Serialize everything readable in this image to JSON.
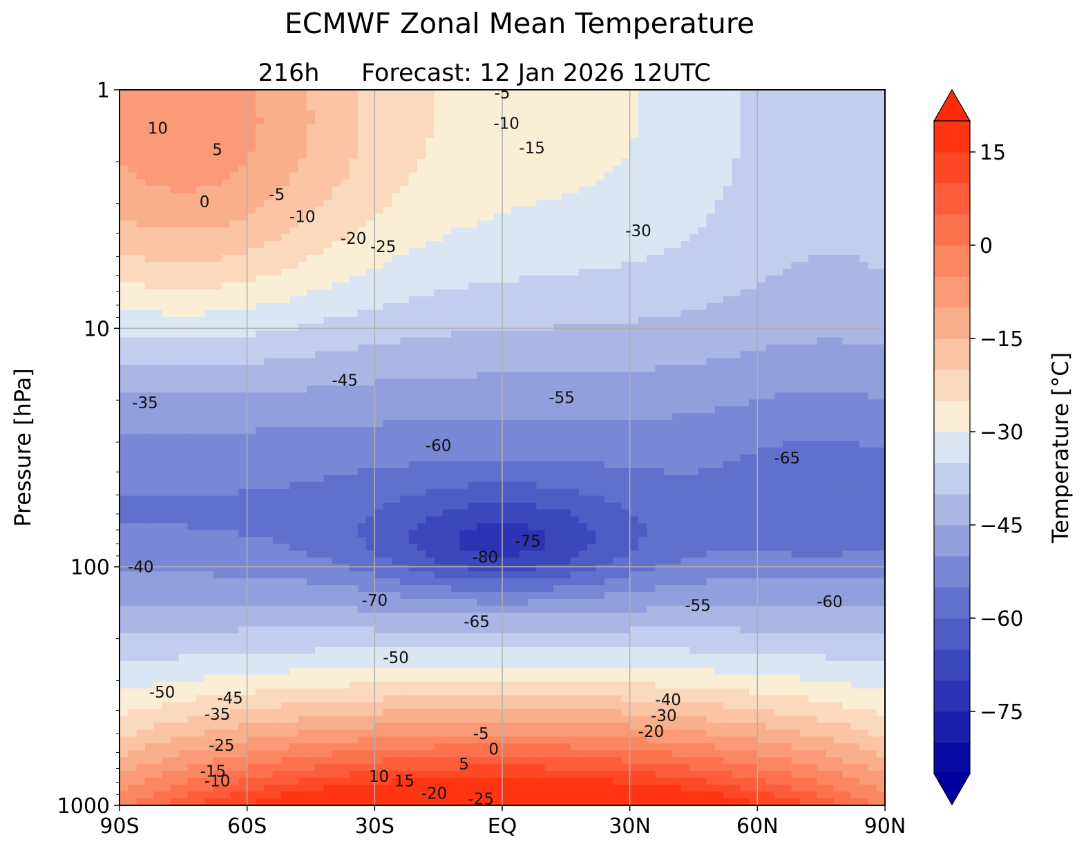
{
  "chart_data": {
    "type": "contour",
    "title": "ECMWF Zonal Mean Temperature",
    "subtitle_lead": "216h",
    "subtitle": "Forecast:  12 Jan 2026  12UTC",
    "xlabel": "",
    "ylabel": "Pressure [hPa]",
    "colorbar_label": "Temperature [°C]",
    "x_ticks": [
      "90S",
      "60S",
      "30S",
      "EQ",
      "30N",
      "60N",
      "90N"
    ],
    "y_ticks": [
      "1",
      "10",
      "100",
      "1000"
    ],
    "y_scale": "log",
    "y_inverted": true,
    "ylim": [
      1000,
      1
    ],
    "xlim": [
      -90,
      90
    ],
    "grid": true,
    "colorbar_ticks": [
      "15",
      "0",
      "−15",
      "−30",
      "−45",
      "−60",
      "−75"
    ],
    "colorbar_range": [
      -85,
      20
    ],
    "colorbar_extend": "both",
    "levels_step": 5,
    "colors": {
      "cold_end": "#0000a0",
      "mid_cold": "#6070cc",
      "neutral_cold": "#dbe6f5",
      "neutral_warm": "#fbeed6",
      "mid_warm": "#f9a480",
      "warm_end": "#ff2a08"
    },
    "contour_labels": [
      {
        "text": "10",
        "lat": -81,
        "p": 1.45
      },
      {
        "text": "5",
        "lat": -67,
        "p": 1.78
      },
      {
        "text": "0",
        "lat": -70,
        "p": 2.95
      },
      {
        "text": "-5",
        "lat": -53,
        "p": 2.75
      },
      {
        "text": "-10",
        "lat": -47,
        "p": 3.4
      },
      {
        "text": "-20",
        "lat": -35,
        "p": 4.2
      },
      {
        "text": "-25",
        "lat": -28,
        "p": 4.55
      },
      {
        "text": "-5",
        "lat": 0,
        "p": 1.03
      },
      {
        "text": "-10",
        "lat": 1,
        "p": 1.38
      },
      {
        "text": "-15",
        "lat": 7,
        "p": 1.75
      },
      {
        "text": "-30",
        "lat": 32,
        "p": 3.9
      },
      {
        "text": "-35",
        "lat": -84,
        "p": 20.5
      },
      {
        "text": "-45",
        "lat": -37,
        "p": 16.5
      },
      {
        "text": "-55",
        "lat": 14,
        "p": 19.5
      },
      {
        "text": "-60",
        "lat": -15,
        "p": 31
      },
      {
        "text": "-75",
        "lat": 6,
        "p": 78
      },
      {
        "text": "-80",
        "lat": -4,
        "p": 91
      },
      {
        "text": "-70",
        "lat": -30,
        "p": 138
      },
      {
        "text": "-65",
        "lat": -6,
        "p": 170
      },
      {
        "text": "-65",
        "lat": 67,
        "p": 35
      },
      {
        "text": "-60",
        "lat": 77,
        "p": 140
      },
      {
        "text": "-55",
        "lat": 46,
        "p": 145
      },
      {
        "text": "-40",
        "lat": -85,
        "p": 100
      },
      {
        "text": "-50",
        "lat": -25,
        "p": 240
      },
      {
        "text": "-50",
        "lat": -80,
        "p": 335
      },
      {
        "text": "-45",
        "lat": -64,
        "p": 355
      },
      {
        "text": "-35",
        "lat": -67,
        "p": 415
      },
      {
        "text": "-25",
        "lat": -66,
        "p": 560
      },
      {
        "text": "-15",
        "lat": -68,
        "p": 720
      },
      {
        "text": "-10",
        "lat": -67,
        "p": 790
      },
      {
        "text": "-40",
        "lat": 39,
        "p": 360
      },
      {
        "text": "-30",
        "lat": 38,
        "p": 420
      },
      {
        "text": "-20",
        "lat": 35,
        "p": 490
      },
      {
        "text": "-5",
        "lat": -5,
        "p": 500
      },
      {
        "text": "0",
        "lat": -2,
        "p": 580
      },
      {
        "text": "5",
        "lat": -9,
        "p": 670
      },
      {
        "text": "10",
        "lat": -29,
        "p": 755
      },
      {
        "text": "15",
        "lat": -23,
        "p": 790
      },
      {
        "text": "-20",
        "lat": -16,
        "p": 890
      },
      {
        "text": "-25",
        "lat": -5,
        "p": 940
      }
    ]
  }
}
